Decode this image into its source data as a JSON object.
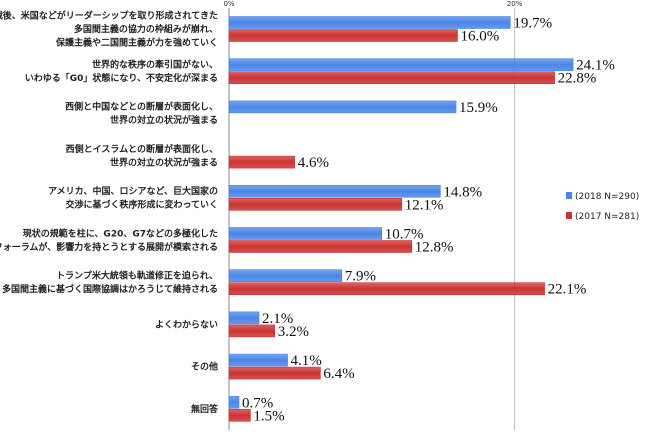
{
  "chart_data": {
    "type": "bar",
    "orientation": "horizontal",
    "xlim": [
      0,
      30
    ],
    "xticks": [
      "0%",
      "20%"
    ],
    "grid": true,
    "legend_position": "right",
    "categories": [
      [
        "戦後、米国などがリーダーシップを取り形成されてきた",
        "多国間主義の協力の枠組みが崩れ、",
        "保護主義や二国間主義が力を強めていく"
      ],
      [
        "世界的な秩序の牽引国がない、",
        "いわゆる「G0」状態になり、不安定化が深まる"
      ],
      [
        "西側と中国などとの断層が表面化し、",
        "世界の対立の状況が強まる"
      ],
      [
        "西側とイスラムとの断層が表面化し、",
        "世界の対立の状況が強まる"
      ],
      [
        "アメリカ、中国、ロシアなど、巨大国家の",
        "交渉に基づく秩序形成に変わっていく"
      ],
      [
        "現状の規範を柱に、G20、G7などの多極化した",
        "フォーラムが、影響力を持とうとする展開が模索される"
      ],
      [
        "トランプ米大統領も軌道修正を迫られ、",
        "多国間主義に基づく国際協調はかろうじて維持される"
      ],
      [
        "よくわからない"
      ],
      [
        "その他"
      ],
      [
        "無回答"
      ]
    ],
    "series": [
      {
        "name": "(2018 N=290)",
        "color": "#4a86e8",
        "values": [
          19.7,
          24.1,
          15.9,
          null,
          14.8,
          10.7,
          7.9,
          2.1,
          4.1,
          0.7
        ],
        "labels": [
          "19.7%",
          "24.1%",
          "15.9%",
          "",
          "14.8%",
          "10.7%",
          "7.9%",
          "2.1%",
          "4.1%",
          "0.7%"
        ]
      },
      {
        "name": "(2017 N=281)",
        "color": "#cc3333",
        "values": [
          16.0,
          22.8,
          null,
          4.6,
          12.1,
          12.8,
          22.1,
          3.2,
          6.4,
          1.5
        ],
        "labels": [
          "16.0%",
          "22.8%",
          "",
          "4.6%",
          "12.1%",
          "12.8%",
          "22.1%",
          "3.2%",
          "6.4%",
          "1.5%"
        ]
      }
    ]
  }
}
